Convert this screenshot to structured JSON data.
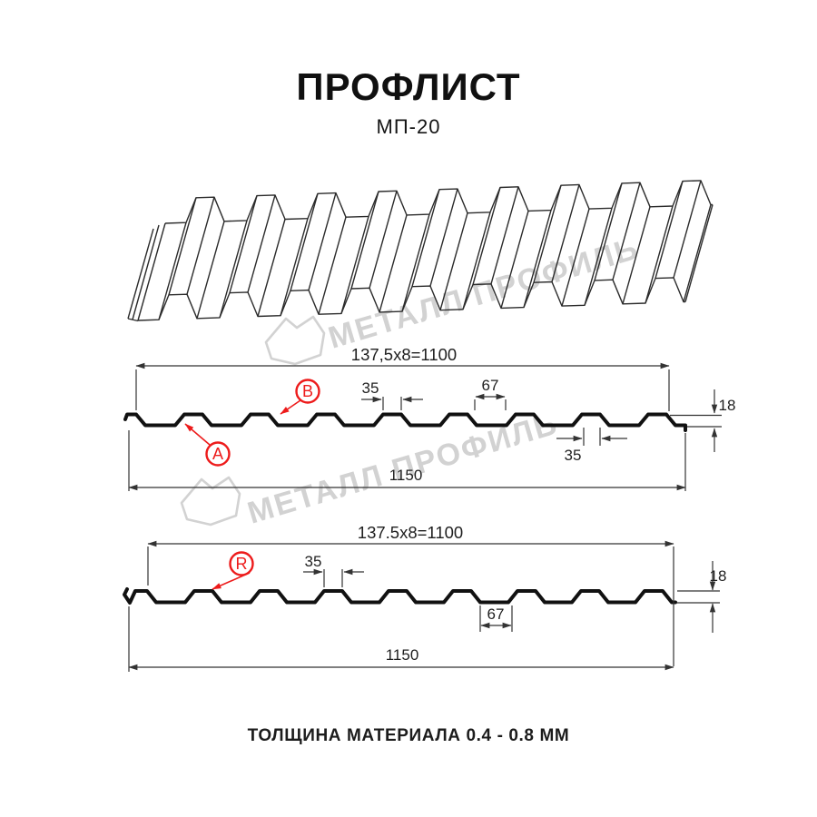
{
  "header": {
    "title": "ПРОФЛИСТ",
    "subtitle": "МП-20"
  },
  "watermark": {
    "brand": "МЕТАЛЛ ПРОФИЛЬ"
  },
  "sections": {
    "top": {
      "formula": "137,5x8=1100",
      "crest_top": "35",
      "valley": "67",
      "height": "18",
      "crest_bottom": "35",
      "total": "1150",
      "label_a": "A",
      "label_b": "B"
    },
    "bottom": {
      "formula": "137.5x8=1100",
      "crest": "35",
      "valley": "67",
      "height": "18",
      "total": "1150",
      "label_r": "R"
    }
  },
  "footer": {
    "text": "ТОЛЩИНА МАТЕРИАЛА 0.4 - 0.8 ММ"
  },
  "colors": {
    "line": "#333333",
    "profile": "#111111",
    "red": "#ed1b1b",
    "watermark": "#d2d2d2"
  }
}
